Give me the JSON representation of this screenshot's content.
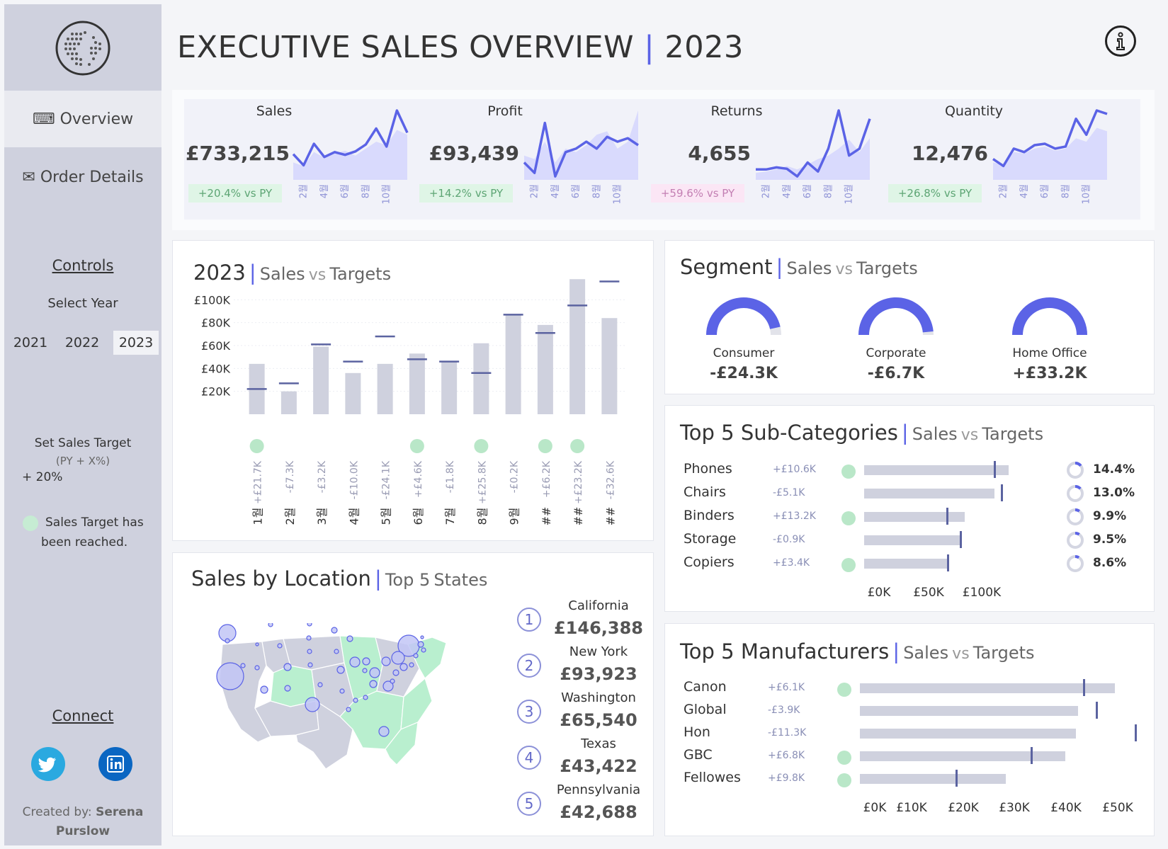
{
  "header": {
    "title": "EXECUTIVE SALES OVERVIEW",
    "year": "2023",
    "info_icon": "info-icon"
  },
  "sidebar": {
    "logo_icon": "globe-icon",
    "nav": [
      {
        "label": "⌨ Overview",
        "active": true
      },
      {
        "label": "✉ Order Details",
        "active": false
      }
    ],
    "controls_heading": "Controls",
    "select_year_label": "Select Year",
    "years": [
      "2021",
      "2022",
      "2023"
    ],
    "selected_year": "2023",
    "sales_target_label": "Set Sales Target",
    "sales_target_formula": "(PY + X%)",
    "sales_target_value": "+ 20%",
    "legend_text_1": "Sales Target has",
    "legend_text_2": "been reached.",
    "connect_heading": "Connect",
    "social": [
      "twitter-icon",
      "linkedin-icon"
    ],
    "created_by_label": "Created by:",
    "created_by_name_1": "Serena",
    "created_by_name_2": "Purslow"
  },
  "kpis": [
    {
      "label": "Sales",
      "value": "£733,215",
      "delta": "+20.4% vs PY",
      "delta_color": "#dff5e6",
      "delta_text_color": "#5da574",
      "trend": [
        0.37,
        0.21,
        0.52,
        0.33,
        0.4,
        0.36,
        0.41,
        0.51,
        0.74,
        0.48,
        1.0,
        0.68
      ],
      "prev": [
        0.25,
        0.2,
        0.4,
        0.32,
        0.38,
        0.42,
        0.35,
        0.45,
        0.55,
        0.5,
        0.72,
        0.65
      ]
    },
    {
      "label": "Profit",
      "value": "£93,439",
      "delta": "+14.2% vs PY",
      "delta_color": "#dff5e6",
      "delta_text_color": "#5da574",
      "trend": [
        0.25,
        0.1,
        0.82,
        0.05,
        0.4,
        0.45,
        0.55,
        0.45,
        0.62,
        0.55,
        0.6,
        0.5
      ],
      "prev": [
        0.35,
        0.3,
        0.55,
        0.25,
        0.45,
        0.4,
        0.5,
        0.65,
        0.7,
        0.45,
        0.55,
        1.0
      ]
    },
    {
      "label": "Returns",
      "value": "4,655",
      "delta": "+59.6% vs PY",
      "delta_color": "#fbe6f5",
      "delta_text_color": "#c37fb3",
      "trend": [
        0.15,
        0.15,
        0.18,
        0.16,
        0.05,
        0.25,
        0.12,
        0.45,
        1.0,
        0.35,
        0.45,
        0.88
      ],
      "prev": [
        0.1,
        0.12,
        0.15,
        0.2,
        0.15,
        0.22,
        0.3,
        0.35,
        0.45,
        0.58,
        0.4,
        0.6
      ]
    },
    {
      "label": "Quantity",
      "value": "12,476",
      "delta": "+26.8% vs PY",
      "delta_color": "#dff5e6",
      "delta_text_color": "#5da574",
      "trend": [
        0.3,
        0.2,
        0.45,
        0.4,
        0.5,
        0.52,
        0.45,
        0.48,
        0.88,
        0.65,
        1.0,
        0.95
      ],
      "prev": [
        0.25,
        0.22,
        0.4,
        0.38,
        0.45,
        0.48,
        0.42,
        0.45,
        0.6,
        0.55,
        0.75,
        0.7
      ]
    }
  ],
  "kpi_tick_labels": [
    "2월",
    "4월",
    "6월",
    "8월",
    "10월"
  ],
  "monthly": {
    "title_year": "2023",
    "title_main": "Sales",
    "title_vs": "vs",
    "title_target": "Targets",
    "y_ticks": [
      "£20K",
      "£40K",
      "£60K",
      "£80K",
      "£100K"
    ],
    "reached_color": "#b9e7c8",
    "chart_data": {
      "type": "bar",
      "categories": [
        "1월",
        "2월",
        "3월",
        "4월",
        "5월",
        "6월",
        "7월",
        "8월",
        "9월",
        "##",
        "##",
        "##"
      ],
      "series": [
        {
          "name": "Sales",
          "values": [
            44000,
            20000,
            59000,
            36000,
            44000,
            53000,
            46000,
            62000,
            87000,
            78000,
            118000,
            84000
          ]
        },
        {
          "name": "Targets",
          "values": [
            22000,
            27000,
            61000,
            46000,
            68000,
            48000,
            46000,
            36000,
            87000,
            71000,
            95000,
            116000
          ]
        }
      ],
      "diff_labels": [
        "+£21.7K",
        "-£7.3K",
        "-£3.2K",
        "-£10.0K",
        "-£24.1K",
        "+£4.6K",
        "-£1.8K",
        "+£25.8K",
        "-£0.2K",
        "+£6.2K",
        "+£23.2K",
        "-£32.6K"
      ],
      "reached": [
        true,
        false,
        false,
        false,
        false,
        true,
        false,
        true,
        false,
        true,
        true,
        false
      ],
      "ylim": [
        0,
        120000
      ]
    }
  },
  "segment": {
    "title_main": "Segment",
    "title_sub_a": "Sales",
    "title_vs": "vs",
    "title_sub_b": "Targets",
    "items": [
      {
        "name": "Consumer",
        "value": "-£24.3K",
        "fill": 0.93
      },
      {
        "name": "Corporate",
        "value": "-£6.7K",
        "fill": 0.97
      },
      {
        "name": "Home Office",
        "value": "+£33.2K",
        "fill": 1.0
      }
    ]
  },
  "subcats": {
    "title_main": "Top 5 Sub-Categories",
    "title_sub_a": "Sales",
    "title_vs": "vs",
    "title_sub_b": "Targets",
    "x_ticks": [
      "£0K",
      "£50K",
      "£100K"
    ],
    "chart_data": {
      "type": "bar",
      "categories": [
        "Phones",
        "Chairs",
        "Binders",
        "Storage",
        "Copiers"
      ],
      "series": [
        {
          "name": "Sales",
          "values": [
            105000,
            95000,
            73000,
            70000,
            62000
          ]
        },
        {
          "name": "Targets",
          "values": [
            95000,
            100000,
            60000,
            70000,
            61000
          ]
        }
      ],
      "deltas": [
        "+£10.6K",
        "-£5.1K",
        "+£13.2K",
        "-£0.9K",
        "+£3.4K"
      ],
      "reached": [
        true,
        false,
        true,
        false,
        true
      ],
      "share": [
        "14.4%",
        "13.0%",
        "9.9%",
        "9.5%",
        "8.6%"
      ],
      "share_values": [
        14.4,
        13.0,
        9.9,
        9.5,
        8.6
      ],
      "xlim": [
        0,
        120000
      ]
    }
  },
  "manufacturers": {
    "title_main": "Top 5 Manufacturers",
    "title_sub_a": "Sales",
    "title_vs": "vs",
    "title_sub_b": "Targets",
    "x_ticks": [
      "£0K",
      "£10K",
      "£20K",
      "£30K",
      "£40K",
      "£50K"
    ],
    "chart_data": {
      "type": "bar",
      "categories": [
        "Canon",
        "Global",
        "Hon",
        "GBC",
        "Fellowes"
      ],
      "series": [
        {
          "name": "Sales",
          "values": [
            49000,
            42000,
            41500,
            39500,
            28000
          ]
        },
        {
          "name": "Targets",
          "values": [
            43000,
            45500,
            53000,
            33000,
            18500
          ]
        }
      ],
      "deltas": [
        "+£6.1K",
        "-£3.9K",
        "-£11.3K",
        "+£6.8K",
        "+£9.8K"
      ],
      "reached": [
        true,
        false,
        false,
        true,
        true
      ],
      "xlim": [
        0,
        53000
      ]
    }
  },
  "location": {
    "title_main": "Sales by Location",
    "title_sub_a": "Top 5",
    "title_sub_b": "States",
    "top_states": [
      {
        "rank": "1",
        "name": "California",
        "value": "£146,388"
      },
      {
        "rank": "2",
        "name": "New York",
        "value": "£93,923"
      },
      {
        "rank": "3",
        "name": "Washington",
        "value": "£65,540"
      },
      {
        "rank": "4",
        "name": "Texas",
        "value": "£43,422"
      },
      {
        "rank": "5",
        "name": "Pennsylvania",
        "value": "£42,688"
      }
    ]
  }
}
